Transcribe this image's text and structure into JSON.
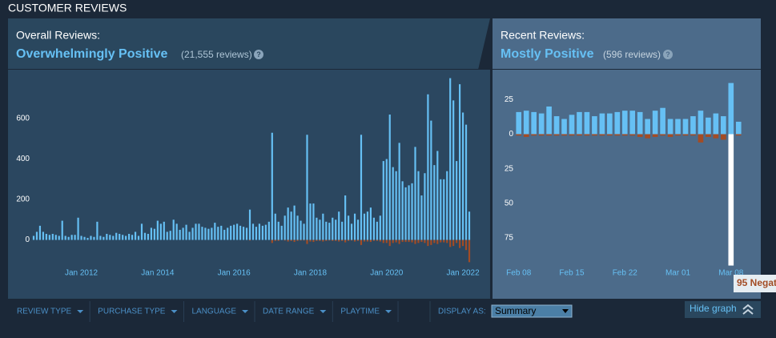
{
  "section_title": "CUSTOMER REVIEWS",
  "overall": {
    "label": "Overall Reviews:",
    "summary": "Overwhelmingly Positive",
    "count": "(21,555 reviews)",
    "help": "?"
  },
  "recent": {
    "label": "Recent Reviews:",
    "summary": "Mostly Positive",
    "count": "(596 reviews)",
    "help": "?"
  },
  "filters": [
    "REVIEW TYPE",
    "PURCHASE TYPE",
    "LANGUAGE",
    "DATE RANGE",
    "PLAYTIME"
  ],
  "display_as": {
    "label": "DISPLAY AS:",
    "value": "Summary"
  },
  "hide_graph": "Hide graph",
  "tooltip": "95 Negat",
  "chart_data": [
    {
      "type": "bar",
      "categories": [
        null,
        null,
        null,
        null,
        null,
        null,
        null,
        null,
        null,
        null,
        null,
        null,
        null,
        null,
        null,
        "Jan 2012",
        null,
        null,
        null,
        null,
        null,
        null,
        null,
        null,
        null,
        null,
        null,
        null,
        null,
        null,
        null,
        null,
        null,
        null,
        null,
        null,
        null,
        null,
        null,
        "Jan 2014",
        null,
        null,
        null,
        null,
        null,
        null,
        null,
        null,
        null,
        null,
        null,
        null,
        null,
        null,
        null,
        null,
        null,
        null,
        null,
        null,
        null,
        null,
        null,
        "Jan 2016",
        null,
        null,
        null,
        null,
        null,
        null,
        null,
        null,
        null,
        null,
        null,
        null,
        null,
        null,
        null,
        null,
        null,
        null,
        null,
        null,
        null,
        null,
        null,
        "Jan 2018",
        null,
        null,
        null,
        null,
        null,
        null,
        null,
        null,
        null,
        null,
        null,
        null,
        null,
        null,
        null,
        null,
        null,
        null,
        null,
        null,
        null,
        null,
        null,
        "Jan 2020",
        null,
        null,
        null,
        null,
        null,
        null,
        null,
        null,
        null,
        null,
        null,
        null,
        null,
        null,
        null,
        null,
        null,
        null,
        null,
        null,
        null,
        null,
        null,
        "Jan 2022",
        null,
        null
      ],
      "series": [
        {
          "color": "#66c0f4",
          "values": [
            20,
            40,
            70,
            40,
            30,
            25,
            30,
            25,
            20,
            95,
            20,
            15,
            25,
            25,
            110,
            20,
            15,
            10,
            20,
            15,
            90,
            20,
            15,
            30,
            25,
            20,
            35,
            30,
            25,
            20,
            30,
            25,
            40,
            20,
            80,
            35,
            30,
            60,
            55,
            95,
            80,
            90,
            40,
            45,
            100,
            80,
            50,
            60,
            75,
            40,
            60,
            80,
            80,
            65,
            60,
            55,
            60,
            85,
            65,
            70,
            50,
            60,
            70,
            75,
            80,
            70,
            65,
            60,
            150,
            80,
            65,
            80,
            70,
            75,
            90,
            530,
            130,
            90,
            70,
            120,
            160,
            140,
            170,
            120,
            95,
            80,
            520,
            180,
            180,
            110,
            100,
            130,
            90,
            85,
            110,
            100,
            140,
            90,
            220,
            120,
            80,
            130,
            100,
            520,
            130,
            140,
            160,
            110,
            90,
            120,
            390,
            400,
            620,
            360,
            340,
            480,
            290,
            260,
            270,
            280,
            460,
            340,
            220,
            330,
            720,
            590,
            370,
            440,
            300,
            300,
            340,
            800,
            690,
            390,
            770,
            630,
            570,
            140
          ]
        },
        {
          "color": "#a34c25",
          "values": [
            0,
            0,
            0,
            0,
            0,
            0,
            0,
            0,
            0,
            0,
            0,
            0,
            0,
            0,
            0,
            0,
            0,
            0,
            0,
            0,
            0,
            0,
            0,
            0,
            0,
            0,
            0,
            0,
            0,
            0,
            0,
            0,
            0,
            0,
            0,
            0,
            0,
            0,
            0,
            0,
            0,
            0,
            0,
            0,
            0,
            0,
            0,
            0,
            0,
            0,
            0,
            0,
            0,
            0,
            0,
            0,
            0,
            0,
            0,
            0,
            0,
            0,
            0,
            0,
            0,
            0,
            0,
            0,
            -3,
            0,
            0,
            0,
            0,
            0,
            0,
            -15,
            -5,
            -5,
            0,
            -3,
            -8,
            -5,
            -10,
            -5,
            -3,
            -3,
            -20,
            -8,
            -10,
            -5,
            -5,
            -8,
            -5,
            -3,
            -5,
            -5,
            -8,
            -5,
            -12,
            -5,
            -3,
            -8,
            -5,
            -25,
            -8,
            -8,
            -10,
            -5,
            -5,
            -8,
            -15,
            -15,
            -30,
            -15,
            -12,
            -20,
            -10,
            -10,
            -10,
            -12,
            -20,
            -15,
            -10,
            -15,
            -30,
            -25,
            -15,
            -20,
            -12,
            -12,
            -15,
            -35,
            -30,
            -15,
            -40,
            -30,
            -50,
            -110
          ]
        }
      ],
      "ylim": [
        -180,
        830
      ],
      "yticks": [
        0,
        200,
        400,
        600
      ]
    },
    {
      "type": "bar",
      "categories": [
        "Feb 08",
        null,
        null,
        null,
        null,
        null,
        null,
        "Feb 15",
        null,
        null,
        null,
        null,
        null,
        null,
        "Feb 22",
        null,
        null,
        null,
        null,
        null,
        null,
        "Mar 01",
        null,
        null,
        null,
        null,
        null,
        null,
        "Mar 08",
        null
      ],
      "series": [
        {
          "color": "#66c0f4",
          "values": [
            16,
            17,
            16,
            15,
            20,
            13,
            11,
            14,
            16,
            16,
            13,
            15,
            15,
            16,
            17,
            17,
            16,
            11,
            17,
            19,
            11,
            11,
            11,
            13,
            17,
            12,
            15,
            13,
            37,
            9
          ]
        },
        {
          "color": "#a34c25",
          "values": [
            -1,
            -2,
            -1,
            -1,
            -1,
            -1,
            -1,
            -1,
            -1,
            -1,
            -1,
            -1,
            -1,
            -1,
            -1,
            -1,
            -2,
            -3,
            -2,
            -1,
            -2,
            -1,
            -1,
            -1,
            -6,
            -2,
            -3,
            -4,
            -95,
            -1
          ]
        }
      ],
      "hover_index": 28,
      "hover_color": "#ffffff",
      "ylim": [
        -97,
        42
      ],
      "yticks": [
        {
          "value": -75,
          "label": "75"
        },
        {
          "value": -50,
          "label": "50"
        },
        {
          "value": -25,
          "label": "25"
        },
        0,
        25
      ]
    }
  ]
}
